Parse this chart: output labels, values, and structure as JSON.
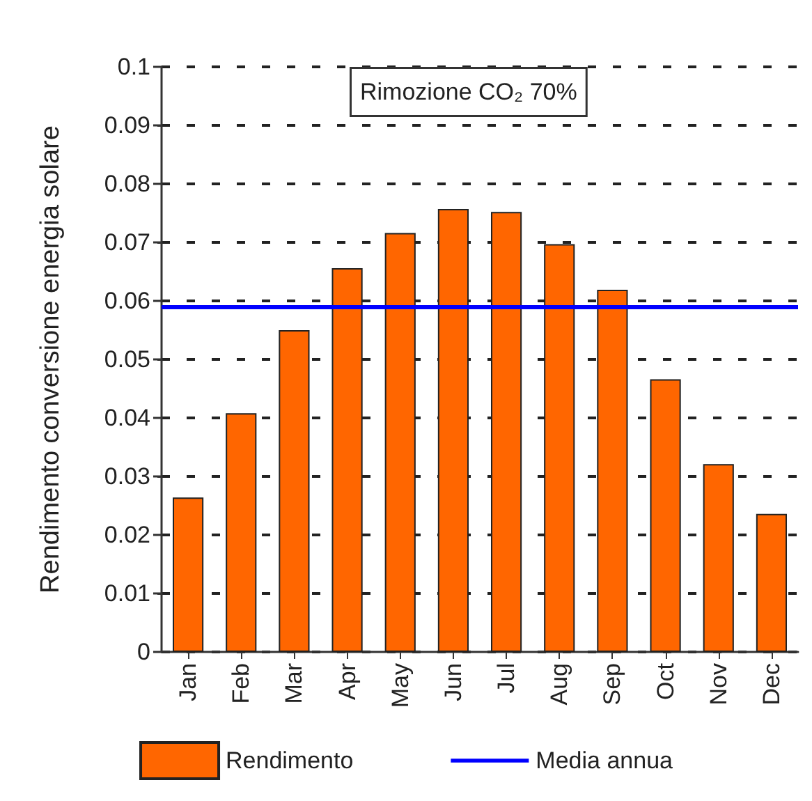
{
  "chart_data": {
    "type": "bar",
    "ylabel": "Rendimento conversione energia solare",
    "categories": [
      "Jan",
      "Feb",
      "Mar",
      "Apr",
      "May",
      "Jun",
      "Jul",
      "Aug",
      "Sep",
      "Oct",
      "Nov",
      "Dec"
    ],
    "series": [
      {
        "name": "Rendimento",
        "color": "#ff6600",
        "values": [
          0.0264,
          0.0408,
          0.055,
          0.0656,
          0.0716,
          0.0757,
          0.0752,
          0.0697,
          0.0619,
          0.0466,
          0.0321,
          0.0236
        ]
      }
    ],
    "ref_lines": [
      {
        "axis": "y",
        "value": 0.0589,
        "label": "Media annua",
        "color": "#0000ff",
        "line_style": "solid"
      }
    ],
    "annotations": [
      "Rimozione CO₂ 70%"
    ],
    "ylim": [
      0,
      0.1
    ],
    "yticks": [
      0,
      0.01,
      0.02,
      0.03,
      0.04,
      0.05,
      0.06,
      0.07,
      0.08,
      0.09,
      0.1
    ],
    "grid": "y",
    "legend": "bottom"
  }
}
